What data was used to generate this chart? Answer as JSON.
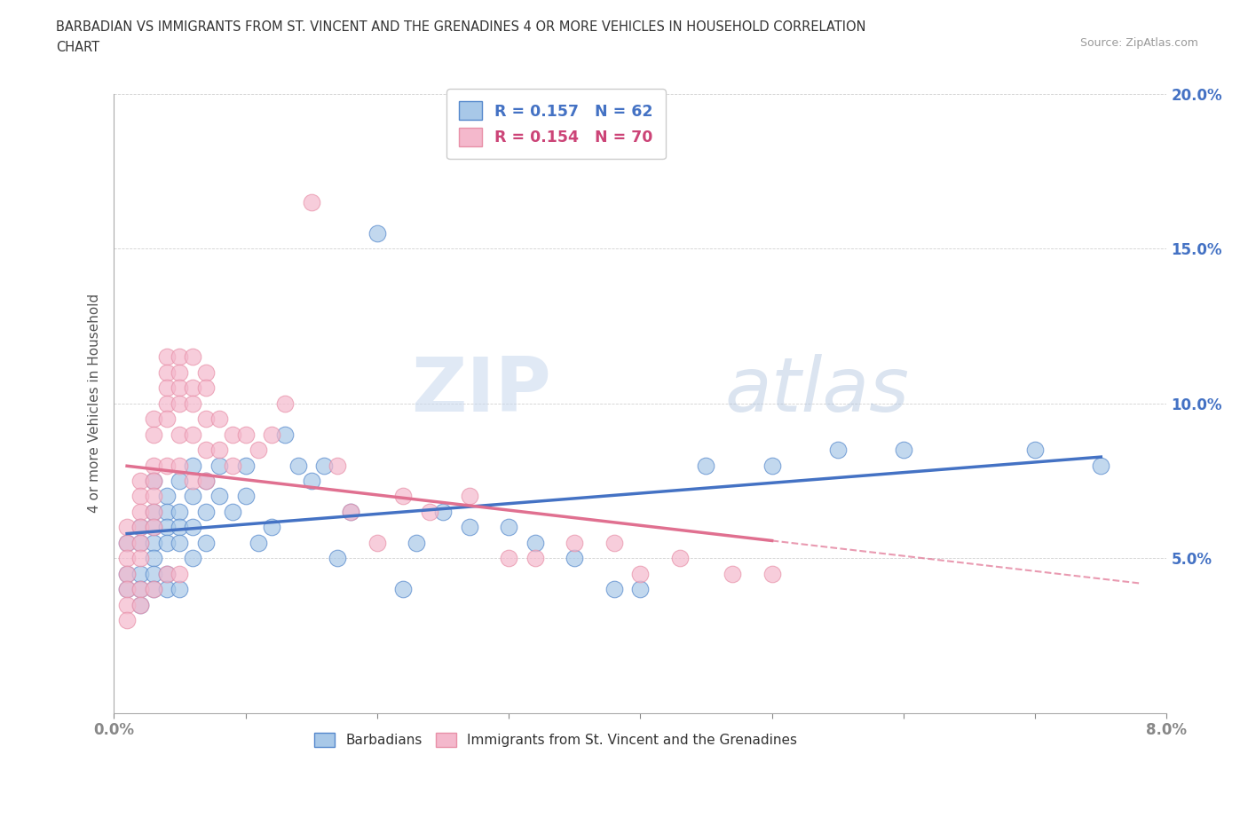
{
  "title_line1": "BARBADIAN VS IMMIGRANTS FROM ST. VINCENT AND THE GRENADINES 4 OR MORE VEHICLES IN HOUSEHOLD CORRELATION",
  "title_line2": "CHART",
  "source": "Source: ZipAtlas.com",
  "ylabel": "4 or more Vehicles in Household",
  "xlim": [
    0.0,
    0.08
  ],
  "ylim": [
    0.0,
    0.2
  ],
  "xticks": [
    0.0,
    0.01,
    0.02,
    0.03,
    0.04,
    0.05,
    0.06,
    0.07,
    0.08
  ],
  "xtick_labels": [
    "0.0%",
    "",
    "",
    "",
    "",
    "",
    "",
    "",
    "8.0%"
  ],
  "yticks": [
    0.0,
    0.05,
    0.1,
    0.15,
    0.2
  ],
  "ytick_labels": [
    "",
    "5.0%",
    "10.0%",
    "15.0%",
    "20.0%"
  ],
  "blue_color": "#a8c8e8",
  "pink_color": "#f4b8cc",
  "blue_edge_color": "#5588cc",
  "pink_edge_color": "#e890a8",
  "blue_line_color": "#4472c4",
  "pink_line_color": "#e07090",
  "legend1_label": "R = 0.157   N = 62",
  "legend2_label": "R = 0.154   N = 70",
  "legend_label_barbadians": "Barbadians",
  "legend_label_immigrants": "Immigrants from St. Vincent and the Grenadines",
  "watermark_zip": "ZIP",
  "watermark_atlas": "atlas",
  "blue_x": [
    0.001,
    0.001,
    0.001,
    0.002,
    0.002,
    0.002,
    0.002,
    0.002,
    0.003,
    0.003,
    0.003,
    0.003,
    0.003,
    0.003,
    0.003,
    0.004,
    0.004,
    0.004,
    0.004,
    0.004,
    0.004,
    0.005,
    0.005,
    0.005,
    0.005,
    0.005,
    0.006,
    0.006,
    0.006,
    0.006,
    0.007,
    0.007,
    0.007,
    0.008,
    0.008,
    0.009,
    0.01,
    0.01,
    0.011,
    0.012,
    0.013,
    0.014,
    0.015,
    0.016,
    0.017,
    0.018,
    0.02,
    0.022,
    0.023,
    0.025,
    0.027,
    0.03,
    0.032,
    0.035,
    0.038,
    0.04,
    0.045,
    0.05,
    0.055,
    0.06,
    0.07,
    0.075
  ],
  "blue_y": [
    0.055,
    0.045,
    0.04,
    0.06,
    0.055,
    0.045,
    0.04,
    0.035,
    0.075,
    0.065,
    0.06,
    0.055,
    0.05,
    0.045,
    0.04,
    0.07,
    0.065,
    0.06,
    0.055,
    0.045,
    0.04,
    0.075,
    0.065,
    0.06,
    0.055,
    0.04,
    0.08,
    0.07,
    0.06,
    0.05,
    0.075,
    0.065,
    0.055,
    0.08,
    0.07,
    0.065,
    0.08,
    0.07,
    0.055,
    0.06,
    0.09,
    0.08,
    0.075,
    0.08,
    0.05,
    0.065,
    0.155,
    0.04,
    0.055,
    0.065,
    0.06,
    0.06,
    0.055,
    0.05,
    0.04,
    0.04,
    0.08,
    0.08,
    0.085,
    0.085,
    0.085,
    0.08
  ],
  "pink_x": [
    0.001,
    0.001,
    0.001,
    0.001,
    0.001,
    0.001,
    0.001,
    0.002,
    0.002,
    0.002,
    0.002,
    0.002,
    0.002,
    0.002,
    0.002,
    0.003,
    0.003,
    0.003,
    0.003,
    0.003,
    0.003,
    0.003,
    0.003,
    0.004,
    0.004,
    0.004,
    0.004,
    0.004,
    0.004,
    0.004,
    0.005,
    0.005,
    0.005,
    0.005,
    0.005,
    0.005,
    0.005,
    0.006,
    0.006,
    0.006,
    0.006,
    0.006,
    0.007,
    0.007,
    0.007,
    0.007,
    0.007,
    0.008,
    0.008,
    0.009,
    0.009,
    0.01,
    0.011,
    0.012,
    0.013,
    0.015,
    0.017,
    0.018,
    0.02,
    0.022,
    0.024,
    0.027,
    0.03,
    0.032,
    0.035,
    0.038,
    0.04,
    0.043,
    0.047,
    0.05
  ],
  "pink_y": [
    0.06,
    0.055,
    0.05,
    0.045,
    0.04,
    0.035,
    0.03,
    0.075,
    0.07,
    0.065,
    0.06,
    0.055,
    0.05,
    0.04,
    0.035,
    0.095,
    0.09,
    0.08,
    0.075,
    0.07,
    0.065,
    0.06,
    0.04,
    0.115,
    0.11,
    0.105,
    0.1,
    0.095,
    0.08,
    0.045,
    0.115,
    0.11,
    0.105,
    0.1,
    0.09,
    0.08,
    0.045,
    0.115,
    0.105,
    0.1,
    0.09,
    0.075,
    0.11,
    0.105,
    0.095,
    0.085,
    0.075,
    0.095,
    0.085,
    0.09,
    0.08,
    0.09,
    0.085,
    0.09,
    0.1,
    0.165,
    0.08,
    0.065,
    0.055,
    0.07,
    0.065,
    0.07,
    0.05,
    0.05,
    0.055,
    0.055,
    0.045,
    0.05,
    0.045,
    0.045
  ]
}
